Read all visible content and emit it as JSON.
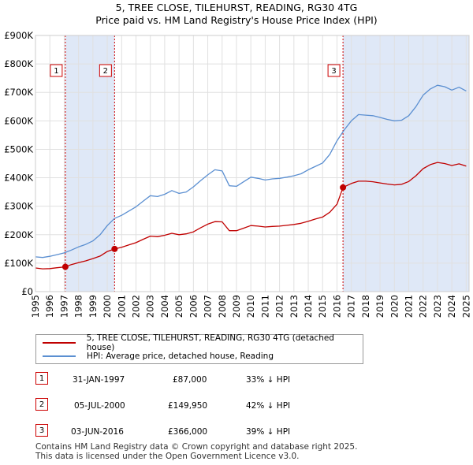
{
  "chart_data": {
    "type": "line",
    "title": "5, TREE CLOSE, TILEHURST, READING, RG30 4TG",
    "subtitle": "Price paid vs. HM Land Registry's House Price Index (HPI)",
    "xlim": [
      1995,
      2025.2
    ],
    "ylim": [
      0,
      900000
    ],
    "y_tick_values": [
      0,
      100000,
      200000,
      300000,
      400000,
      500000,
      600000,
      700000,
      800000,
      900000
    ],
    "y_tick_labels": [
      "£0",
      "£100K",
      "£200K",
      "£300K",
      "£400K",
      "£500K",
      "£600K",
      "£700K",
      "£800K",
      "£900K"
    ],
    "x_tick_labels": [
      "1995",
      "1996",
      "1997",
      "1998",
      "1999",
      "2000",
      "2001",
      "2002",
      "2003",
      "2004",
      "2005",
      "2006",
      "2007",
      "2008",
      "2009",
      "2010",
      "2011",
      "2012",
      "2013",
      "2014",
      "2015",
      "2016",
      "2017",
      "2018",
      "2019",
      "2020",
      "2021",
      "2022",
      "2023",
      "2024",
      "2025"
    ],
    "grid": true,
    "colors": {
      "hpi": "#5b8fd1",
      "price": "#c00000",
      "shade": "#dfe8f7",
      "grid": "#e0e0e0",
      "vline": "#cc0000"
    },
    "shaded_ranges": [
      [
        1997.08,
        2000.51
      ],
      [
        2016.42,
        2025.2
      ]
    ],
    "series": [
      {
        "name": "HPI: Average price, detached house, Reading",
        "key": "hpi",
        "x": [
          1995.0,
          1995.5,
          1996.0,
          1996.5,
          1997.0,
          1997.5,
          1998.0,
          1998.5,
          1999.0,
          1999.5,
          2000.0,
          2000.5,
          2001.0,
          2001.5,
          2002.0,
          2002.5,
          2003.0,
          2003.5,
          2004.0,
          2004.5,
          2005.0,
          2005.5,
          2006.0,
          2006.5,
          2007.0,
          2007.5,
          2008.0,
          2008.5,
          2009.0,
          2009.5,
          2010.0,
          2010.5,
          2011.0,
          2011.5,
          2012.0,
          2012.5,
          2013.0,
          2013.5,
          2014.0,
          2014.5,
          2015.0,
          2015.5,
          2016.0,
          2016.5,
          2017.0,
          2017.5,
          2018.0,
          2018.5,
          2019.0,
          2019.5,
          2020.0,
          2020.5,
          2021.0,
          2021.5,
          2022.0,
          2022.5,
          2023.0,
          2023.5,
          2024.0,
          2024.5,
          2025.0
        ],
        "values": [
          122000,
          120000,
          124000,
          130000,
          136000,
          146000,
          157000,
          166000,
          178000,
          200000,
          232000,
          257000,
          268000,
          283000,
          298000,
          318000,
          337000,
          334000,
          342000,
          355000,
          345000,
          350000,
          368000,
          390000,
          410000,
          428000,
          424000,
          372000,
          370000,
          386000,
          402000,
          398000,
          392000,
          396000,
          398000,
          402000,
          407000,
          414000,
          428000,
          440000,
          452000,
          482000,
          530000,
          568000,
          600000,
          622000,
          620000,
          618000,
          612000,
          605000,
          600000,
          602000,
          618000,
          650000,
          690000,
          712000,
          725000,
          720000,
          708000,
          718000,
          705000
        ]
      },
      {
        "name": "5, TREE CLOSE, TILEHURST, READING, RG30 4TG (detached house)",
        "key": "price",
        "x": [
          1995.0,
          1995.5,
          1996.0,
          1996.5,
          1997.08,
          1997.5,
          1998.0,
          1998.5,
          1999.0,
          1999.5,
          2000.0,
          2000.51,
          2001.0,
          2001.5,
          2002.0,
          2002.5,
          2003.0,
          2003.5,
          2004.0,
          2004.5,
          2005.0,
          2005.5,
          2006.0,
          2006.5,
          2007.0,
          2007.5,
          2008.0,
          2008.5,
          2009.0,
          2009.5,
          2010.0,
          2010.5,
          2011.0,
          2011.5,
          2012.0,
          2012.5,
          2013.0,
          2013.5,
          2014.0,
          2014.5,
          2015.0,
          2015.5,
          2016.0,
          2016.42,
          2017.0,
          2017.5,
          2018.0,
          2018.5,
          2019.0,
          2019.5,
          2020.0,
          2020.5,
          2021.0,
          2021.5,
          2022.0,
          2022.5,
          2023.0,
          2023.5,
          2024.0,
          2024.5,
          2025.0
        ],
        "values": [
          83000,
          80000,
          81000,
          84000,
          87000,
          95000,
          102000,
          108000,
          116000,
          125000,
          141000,
          149950,
          156000,
          164000,
          172000,
          184000,
          195000,
          193000,
          198000,
          205000,
          200000,
          203000,
          210000,
          224000,
          237000,
          246000,
          245000,
          214000,
          214000,
          223000,
          232000,
          230000,
          227000,
          229000,
          230000,
          233000,
          236000,
          240000,
          247000,
          255000,
          262000,
          279000,
          307000,
          366000,
          380000,
          388000,
          388000,
          386000,
          382000,
          378000,
          375000,
          377000,
          387000,
          407000,
          432000,
          446000,
          454000,
          450000,
          443000,
          449000,
          441000
        ]
      }
    ],
    "sales": [
      {
        "label": "1",
        "x": 1997.08,
        "value": 87000
      },
      {
        "label": "2",
        "x": 2000.51,
        "value": 149950
      },
      {
        "label": "3",
        "x": 2016.42,
        "value": 366000
      }
    ]
  },
  "legend": {
    "price_label": "5, TREE CLOSE, TILEHURST, READING, RG30 4TG (detached house)",
    "hpi_label": "HPI: Average price, detached house, Reading"
  },
  "sales_table": [
    {
      "num": "1",
      "date": "31-JAN-1997",
      "price": "£87,000",
      "hpi": "33% ↓ HPI"
    },
    {
      "num": "2",
      "date": "05-JUL-2000",
      "price": "£149,950",
      "hpi": "42% ↓ HPI"
    },
    {
      "num": "3",
      "date": "03-JUN-2016",
      "price": "£366,000",
      "hpi": "39% ↓ HPI"
    }
  ],
  "footer": {
    "line1": "Contains HM Land Registry data © Crown copyright and database right 2025.",
    "line2": "This data is licensed under the Open Government Licence v3.0."
  }
}
